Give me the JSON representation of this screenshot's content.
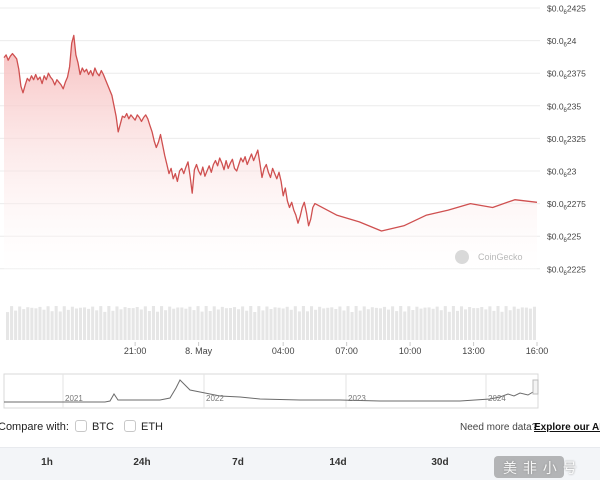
{
  "chart_data": {
    "type": "line",
    "ylim": [
      2.22e-06,
      2.4e-06
    ],
    "ytick_values": [
      2.22e-06,
      2.2225e-06,
      2.225e-06,
      2.2275e-06,
      2.23e-06,
      2.2325e-06,
      2.235e-06,
      2.2375e-06,
      2.24e-06,
      2.2425e-06
    ],
    "ytick_labels": [
      {
        "main": "$0.0",
        "sub": "6",
        "tail": "2225"
      },
      {
        "main": "$0.0",
        "sub": "6",
        "tail": "225"
      },
      {
        "main": "$0.0",
        "sub": "6",
        "tail": "2275"
      },
      {
        "main": "$0.0",
        "sub": "6",
        "tail": "23"
      },
      {
        "main": "$0.0",
        "sub": "6",
        "tail": "2325"
      },
      {
        "main": "$0.0",
        "sub": "6",
        "tail": "235"
      },
      {
        "main": "$0.0",
        "sub": "6",
        "tail": "2375"
      },
      {
        "main": "$0.0",
        "sub": "6",
        "tail": "24"
      },
      {
        "main": "$0.0",
        "sub": "6",
        "tail": "2425"
      }
    ],
    "xtick_labels": [
      "21:00",
      "8. May",
      "04:00",
      "07:00",
      "10:00",
      "13:00",
      "16:00"
    ],
    "xtick_hours": [
      3,
      6,
      10,
      13,
      16,
      19,
      22
    ],
    "x_hours_range": [
      -3.2,
      22
    ],
    "price_series": [
      [
        -3.2,
        2.2387
      ],
      [
        -3.1,
        2.2389
      ],
      [
        -3.0,
        2.2385
      ],
      [
        -2.9,
        2.2388
      ],
      [
        -2.8,
        2.239
      ],
      [
        -2.7,
        2.2388
      ],
      [
        -2.6,
        2.2386
      ],
      [
        -2.5,
        2.2378
      ],
      [
        -2.4,
        2.2365
      ],
      [
        -2.3,
        2.236
      ],
      [
        -2.2,
        2.2366
      ],
      [
        -2.1,
        2.2371
      ],
      [
        -2.0,
        2.2369
      ],
      [
        -1.9,
        2.2373
      ],
      [
        -1.8,
        2.237
      ],
      [
        -1.7,
        2.2374
      ],
      [
        -1.6,
        2.237
      ],
      [
        -1.5,
        2.2372
      ],
      [
        -1.4,
        2.2367
      ],
      [
        -1.3,
        2.2373
      ],
      [
        -1.2,
        2.237
      ],
      [
        -1.1,
        2.2375
      ],
      [
        -1.0,
        2.2372
      ],
      [
        -0.9,
        2.237
      ],
      [
        -0.8,
        2.2366
      ],
      [
        -0.7,
        2.237
      ],
      [
        -0.6,
        2.2368
      ],
      [
        -0.5,
        2.2366
      ],
      [
        -0.4,
        2.2363
      ],
      [
        -0.3,
        2.2368
      ],
      [
        -0.2,
        2.2372
      ],
      [
        -0.1,
        2.238
      ],
      [
        0.0,
        2.2398
      ],
      [
        0.1,
        2.2404
      ],
      [
        0.2,
        2.2389
      ],
      [
        0.3,
        2.2383
      ],
      [
        0.4,
        2.2374
      ],
      [
        0.5,
        2.2379
      ],
      [
        0.6,
        2.2376
      ],
      [
        0.7,
        2.2378
      ],
      [
        0.8,
        2.2374
      ],
      [
        0.9,
        2.2377
      ],
      [
        1.0,
        2.2373
      ],
      [
        1.1,
        2.2379
      ],
      [
        1.2,
        2.2375
      ],
      [
        1.3,
        2.2373
      ],
      [
        1.4,
        2.2377
      ],
      [
        1.5,
        2.2374
      ],
      [
        1.6,
        2.237
      ],
      [
        1.7,
        2.2366
      ],
      [
        1.8,
        2.2362
      ],
      [
        1.9,
        2.2358
      ],
      [
        2.0,
        2.235
      ],
      [
        2.1,
        2.2342
      ],
      [
        2.2,
        2.233
      ],
      [
        2.3,
        2.2336
      ],
      [
        2.4,
        2.2342
      ],
      [
        2.5,
        2.2341
      ],
      [
        2.6,
        2.2344
      ],
      [
        2.7,
        2.234
      ],
      [
        2.8,
        2.2343
      ],
      [
        2.9,
        2.2341
      ],
      [
        3.0,
        2.2339
      ],
      [
        3.1,
        2.2343
      ],
      [
        3.2,
        2.2341
      ],
      [
        3.3,
        2.2338
      ],
      [
        3.4,
        2.2341
      ],
      [
        3.5,
        2.2343
      ],
      [
        3.6,
        2.234
      ],
      [
        3.7,
        2.2335
      ],
      [
        3.8,
        2.233
      ],
      [
        3.9,
        2.2323
      ],
      [
        4.0,
        2.2318
      ],
      [
        4.1,
        2.2322
      ],
      [
        4.2,
        2.2328
      ],
      [
        4.3,
        2.232
      ],
      [
        4.4,
        2.2312
      ],
      [
        4.5,
        2.2305
      ],
      [
        4.6,
        2.2298
      ],
      [
        4.7,
        2.2302
      ],
      [
        4.8,
        2.2294
      ],
      [
        4.9,
        2.2298
      ],
      [
        5.0,
        2.2292
      ],
      [
        5.1,
        2.23
      ],
      [
        5.2,
        2.2302
      ],
      [
        5.3,
        2.2298
      ],
      [
        5.4,
        2.2303
      ],
      [
        5.5,
        2.2307
      ],
      [
        5.6,
        2.2296
      ],
      [
        5.7,
        2.2283
      ],
      [
        5.8,
        2.2301
      ],
      [
        5.9,
        2.2305
      ],
      [
        6.0,
        2.23
      ],
      [
        6.1,
        2.2297
      ],
      [
        6.2,
        2.2303
      ],
      [
        6.3,
        2.2296
      ],
      [
        6.4,
        2.23
      ],
      [
        6.5,
        2.2304
      ],
      [
        6.6,
        2.2299
      ],
      [
        6.7,
        2.2305
      ],
      [
        6.8,
        2.2308
      ],
      [
        6.9,
        2.2304
      ],
      [
        7.0,
        2.231
      ],
      [
        7.1,
        2.2306
      ],
      [
        7.2,
        2.2301
      ],
      [
        7.3,
        2.2308
      ],
      [
        7.4,
        2.2302
      ],
      [
        7.5,
        2.2306
      ],
      [
        7.6,
        2.2309
      ],
      [
        7.7,
        2.2302
      ],
      [
        7.8,
        2.23
      ],
      [
        7.9,
        2.2305
      ],
      [
        8.0,
        2.231
      ],
      [
        8.1,
        2.2307
      ],
      [
        8.2,
        2.2311
      ],
      [
        8.3,
        2.2305
      ],
      [
        8.4,
        2.2309
      ],
      [
        8.5,
        2.2313
      ],
      [
        8.6,
        2.2308
      ],
      [
        8.7,
        2.2312
      ],
      [
        8.8,
        2.2316
      ],
      [
        8.9,
        2.2306
      ],
      [
        9.0,
        2.2295
      ],
      [
        9.1,
        2.2302
      ],
      [
        9.2,
        2.2305
      ],
      [
        9.3,
        2.2299
      ],
      [
        9.4,
        2.2295
      ],
      [
        9.5,
        2.2302
      ],
      [
        9.6,
        2.2298
      ],
      [
        9.7,
        2.2294
      ],
      [
        9.8,
        2.2299
      ],
      [
        9.9,
        2.2292
      ],
      [
        10.0,
        2.2281
      ],
      [
        10.1,
        2.2287
      ],
      [
        10.2,
        2.2277
      ],
      [
        10.3,
        2.2272
      ],
      [
        10.4,
        2.2276
      ],
      [
        10.5,
        2.227
      ],
      [
        10.6,
        2.2266
      ],
      [
        10.7,
        2.226
      ],
      [
        10.8,
        2.2265
      ],
      [
        10.9,
        2.2272
      ],
      [
        11.0,
        2.2276
      ],
      [
        11.1,
        2.2268
      ],
      [
        11.2,
        2.2258
      ],
      [
        11.3,
        2.2263
      ],
      [
        11.4,
        2.2272
      ],
      [
        11.5,
        2.2275
      ]
    ],
    "volume_bar_count": 131,
    "overview_labels": [
      "2021",
      "2022",
      "2023",
      "2024"
    ]
  },
  "compare": {
    "label": "Compare with:",
    "options": [
      "BTC",
      "ETH"
    ]
  },
  "api": {
    "prompt": "Need more data?",
    "link": "Explore our API"
  },
  "tabs": [
    "1h",
    "24h",
    "7d",
    "14d",
    "30d"
  ],
  "watermark": {
    "brand": "CoinGecko",
    "bottom_text": "美 非 小 号"
  },
  "colors": {
    "line": "#cf5050",
    "area_top": "#f6b9b9",
    "area_bottom": "#ffffff",
    "grid": "#ececec",
    "volume": "#e6e6e6",
    "overview_line": "#6b6b6b"
  }
}
